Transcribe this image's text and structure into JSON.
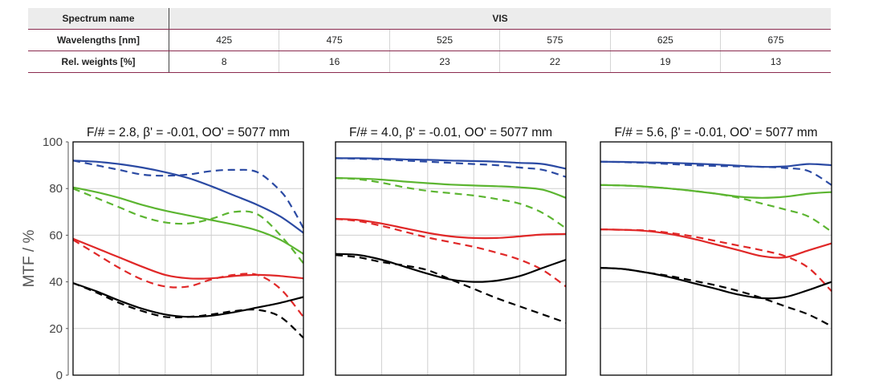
{
  "table": {
    "spectrum_label": "Spectrum name",
    "spectrum_value": "VIS",
    "wavelength_label": "Wavelengths [nm]",
    "wavelengths": [
      "425",
      "475",
      "525",
      "575",
      "625",
      "675"
    ],
    "weight_label": "Rel. weights [%]",
    "weights": [
      "8",
      "16",
      "23",
      "22",
      "19",
      "13"
    ]
  },
  "chart_data": [
    {
      "type": "line",
      "title": "F/# = 2.8, β' = -0.01, OO' = 5077 mm",
      "ylabel": "MTF / %",
      "ylim": [
        0,
        100
      ],
      "yticks": [
        "0",
        "20",
        "40",
        "60",
        "80",
        "100"
      ],
      "xlim": [
        0,
        1
      ],
      "grid": true,
      "colors": {
        "blue": "#2b4aa3",
        "green": "#5cb531",
        "red": "#e02828",
        "black": "#000000"
      },
      "series": [
        {
          "color": "blue",
          "style": "solid",
          "x": [
            0,
            0.1,
            0.2,
            0.3,
            0.4,
            0.5,
            0.6,
            0.7,
            0.8,
            0.9,
            1.0
          ],
          "y": [
            92,
            91.5,
            90.5,
            89,
            87,
            84.5,
            81,
            77,
            73,
            68,
            61
          ]
        },
        {
          "color": "blue",
          "style": "dashed",
          "x": [
            0,
            0.1,
            0.2,
            0.3,
            0.4,
            0.5,
            0.6,
            0.7,
            0.8,
            0.9,
            0.95,
            1.0
          ],
          "y": [
            92,
            90,
            88,
            86,
            85.5,
            86,
            87.5,
            88,
            87,
            79,
            72,
            63
          ]
        },
        {
          "color": "green",
          "style": "solid",
          "x": [
            0,
            0.1,
            0.2,
            0.3,
            0.4,
            0.5,
            0.6,
            0.7,
            0.8,
            0.9,
            1.0
          ],
          "y": [
            80.5,
            78.5,
            76,
            73,
            70.5,
            68.5,
            66.5,
            64.5,
            62,
            58,
            52
          ]
        },
        {
          "color": "green",
          "style": "dashed",
          "x": [
            0,
            0.1,
            0.2,
            0.3,
            0.4,
            0.5,
            0.6,
            0.7,
            0.8,
            0.9,
            1.0
          ],
          "y": [
            80,
            76,
            72,
            68,
            65.5,
            65,
            67,
            70,
            69,
            60,
            48
          ]
        },
        {
          "color": "red",
          "style": "solid",
          "x": [
            0,
            0.1,
            0.2,
            0.3,
            0.4,
            0.5,
            0.6,
            0.7,
            0.8,
            0.9,
            1.0
          ],
          "y": [
            58.5,
            54.5,
            50.5,
            46.5,
            43,
            41.5,
            41.5,
            42.5,
            43,
            42.5,
            41.5
          ]
        },
        {
          "color": "red",
          "style": "dashed",
          "x": [
            0,
            0.1,
            0.2,
            0.3,
            0.4,
            0.5,
            0.6,
            0.7,
            0.8,
            0.9,
            1.0
          ],
          "y": [
            58,
            52,
            46,
            41,
            38,
            38,
            41,
            43,
            43,
            37,
            25
          ]
        },
        {
          "color": "black",
          "style": "solid",
          "x": [
            0,
            0.1,
            0.2,
            0.3,
            0.4,
            0.5,
            0.6,
            0.7,
            0.8,
            0.9,
            1.0
          ],
          "y": [
            39.5,
            36,
            32,
            28.5,
            26,
            25,
            25.5,
            27,
            29,
            31,
            33.5
          ]
        },
        {
          "color": "black",
          "style": "dashed",
          "x": [
            0,
            0.1,
            0.2,
            0.3,
            0.4,
            0.5,
            0.6,
            0.7,
            0.8,
            0.9,
            1.0
          ],
          "y": [
            39.5,
            35.5,
            31,
            27.5,
            25,
            25,
            26,
            27.5,
            28,
            25,
            16
          ]
        }
      ]
    },
    {
      "type": "line",
      "title": "F/# = 4.0, β' = -0.01, OO' = 5077 mm",
      "ylim": [
        0,
        100
      ],
      "xlim": [
        0,
        1
      ],
      "grid": true,
      "colors": {
        "blue": "#2b4aa3",
        "green": "#5cb531",
        "red": "#e02828",
        "black": "#000000"
      },
      "series": [
        {
          "color": "blue",
          "style": "solid",
          "x": [
            0,
            0.1,
            0.2,
            0.3,
            0.4,
            0.5,
            0.6,
            0.7,
            0.8,
            0.9,
            1.0
          ],
          "y": [
            93,
            93,
            92.8,
            92.5,
            92.3,
            92,
            91.8,
            91.5,
            91,
            90.5,
            88.5
          ]
        },
        {
          "color": "blue",
          "style": "dashed",
          "x": [
            0,
            0.1,
            0.2,
            0.3,
            0.4,
            0.5,
            0.6,
            0.7,
            0.8,
            0.9,
            1.0
          ],
          "y": [
            93,
            92.8,
            92.5,
            92,
            91.5,
            91,
            90.5,
            90,
            89,
            88,
            85
          ]
        },
        {
          "color": "green",
          "style": "solid",
          "x": [
            0,
            0.1,
            0.2,
            0.3,
            0.4,
            0.5,
            0.6,
            0.7,
            0.8,
            0.9,
            1.0
          ],
          "y": [
            84.5,
            84.3,
            83.8,
            83,
            82.3,
            81.7,
            81.3,
            81,
            80.5,
            79.5,
            76
          ]
        },
        {
          "color": "green",
          "style": "dashed",
          "x": [
            0,
            0.1,
            0.2,
            0.3,
            0.4,
            0.5,
            0.6,
            0.7,
            0.8,
            0.9,
            1.0
          ],
          "y": [
            84.5,
            84,
            82.5,
            80.5,
            79,
            78,
            77,
            75.5,
            73.5,
            69.5,
            63
          ]
        },
        {
          "color": "red",
          "style": "solid",
          "x": [
            0,
            0.1,
            0.2,
            0.3,
            0.4,
            0.5,
            0.6,
            0.7,
            0.8,
            0.9,
            1.0
          ],
          "y": [
            67,
            66.5,
            65,
            63,
            61,
            59.5,
            58.8,
            58.8,
            59.5,
            60.3,
            60.5
          ]
        },
        {
          "color": "red",
          "style": "dashed",
          "x": [
            0,
            0.1,
            0.2,
            0.3,
            0.4,
            0.5,
            0.6,
            0.7,
            0.8,
            0.9,
            1.0
          ],
          "y": [
            67,
            66,
            64,
            61.5,
            59,
            57,
            55,
            52.5,
            49.5,
            45,
            38
          ]
        },
        {
          "color": "black",
          "style": "solid",
          "x": [
            0,
            0.1,
            0.2,
            0.3,
            0.4,
            0.5,
            0.6,
            0.7,
            0.8,
            0.9,
            1.0
          ],
          "y": [
            52,
            51.5,
            49.5,
            46.5,
            43.5,
            41,
            40,
            40.5,
            42.5,
            46,
            49.5
          ]
        },
        {
          "color": "black",
          "style": "dashed",
          "x": [
            0,
            0.1,
            0.2,
            0.3,
            0.4,
            0.5,
            0.6,
            0.7,
            0.8,
            0.9,
            1.0
          ],
          "y": [
            51.5,
            50.5,
            48.5,
            47,
            45,
            41,
            37,
            33,
            29.5,
            26,
            22.5
          ]
        }
      ]
    },
    {
      "type": "line",
      "title": "F/# = 5.6, β' = -0.01, OO' = 5077 mm",
      "ylim": [
        0,
        100
      ],
      "xlim": [
        0,
        1
      ],
      "grid": true,
      "colors": {
        "blue": "#2b4aa3",
        "green": "#5cb531",
        "red": "#e02828",
        "black": "#000000"
      },
      "series": [
        {
          "color": "blue",
          "style": "solid",
          "x": [
            0,
            0.1,
            0.2,
            0.3,
            0.4,
            0.5,
            0.6,
            0.7,
            0.8,
            0.9,
            1.0
          ],
          "y": [
            91.5,
            91.4,
            91.2,
            91,
            90.7,
            90.3,
            89.8,
            89.3,
            89.5,
            90.5,
            90
          ]
        },
        {
          "color": "blue",
          "style": "dashed",
          "x": [
            0,
            0.1,
            0.2,
            0.3,
            0.4,
            0.5,
            0.6,
            0.7,
            0.8,
            0.9,
            1.0
          ],
          "y": [
            91.5,
            91.3,
            91,
            90.5,
            90,
            89.7,
            89.5,
            89.3,
            88.8,
            87.5,
            81.5
          ]
        },
        {
          "color": "green",
          "style": "solid",
          "x": [
            0,
            0.1,
            0.2,
            0.3,
            0.4,
            0.5,
            0.6,
            0.7,
            0.8,
            0.9,
            1.0
          ],
          "y": [
            81.5,
            81.3,
            80.8,
            80,
            79,
            77.8,
            76.5,
            76,
            76.5,
            77.8,
            78.5
          ]
        },
        {
          "color": "green",
          "style": "dashed",
          "x": [
            0,
            0.1,
            0.2,
            0.3,
            0.4,
            0.5,
            0.6,
            0.7,
            0.8,
            0.9,
            1.0
          ],
          "y": [
            81.5,
            81.3,
            80.8,
            80,
            79,
            77.8,
            76,
            73.5,
            71,
            68,
            61.5
          ]
        },
        {
          "color": "red",
          "style": "solid",
          "x": [
            0,
            0.1,
            0.2,
            0.3,
            0.4,
            0.5,
            0.6,
            0.7,
            0.8,
            0.9,
            1.0
          ],
          "y": [
            62.5,
            62.3,
            61.8,
            60.5,
            58.5,
            56,
            53.5,
            51,
            50.5,
            53.5,
            56.5
          ]
        },
        {
          "color": "red",
          "style": "dashed",
          "x": [
            0,
            0.1,
            0.2,
            0.3,
            0.4,
            0.5,
            0.6,
            0.7,
            0.8,
            0.9,
            1.0
          ],
          "y": [
            62.5,
            62.3,
            62,
            61,
            59.5,
            57.5,
            55.5,
            53.5,
            51,
            46,
            36
          ]
        },
        {
          "color": "black",
          "style": "solid",
          "x": [
            0,
            0.1,
            0.2,
            0.3,
            0.4,
            0.5,
            0.6,
            0.7,
            0.8,
            0.9,
            1.0
          ],
          "y": [
            46,
            45.5,
            44,
            42,
            39.5,
            37,
            34.5,
            33,
            33.5,
            36.5,
            40
          ]
        },
        {
          "color": "black",
          "style": "dashed",
          "x": [
            0,
            0.1,
            0.2,
            0.3,
            0.4,
            0.5,
            0.6,
            0.7,
            0.8,
            0.9,
            1.0
          ],
          "y": [
            46,
            45.5,
            44,
            42.5,
            40.5,
            38.5,
            36,
            33,
            29.5,
            26,
            21
          ]
        }
      ]
    }
  ]
}
